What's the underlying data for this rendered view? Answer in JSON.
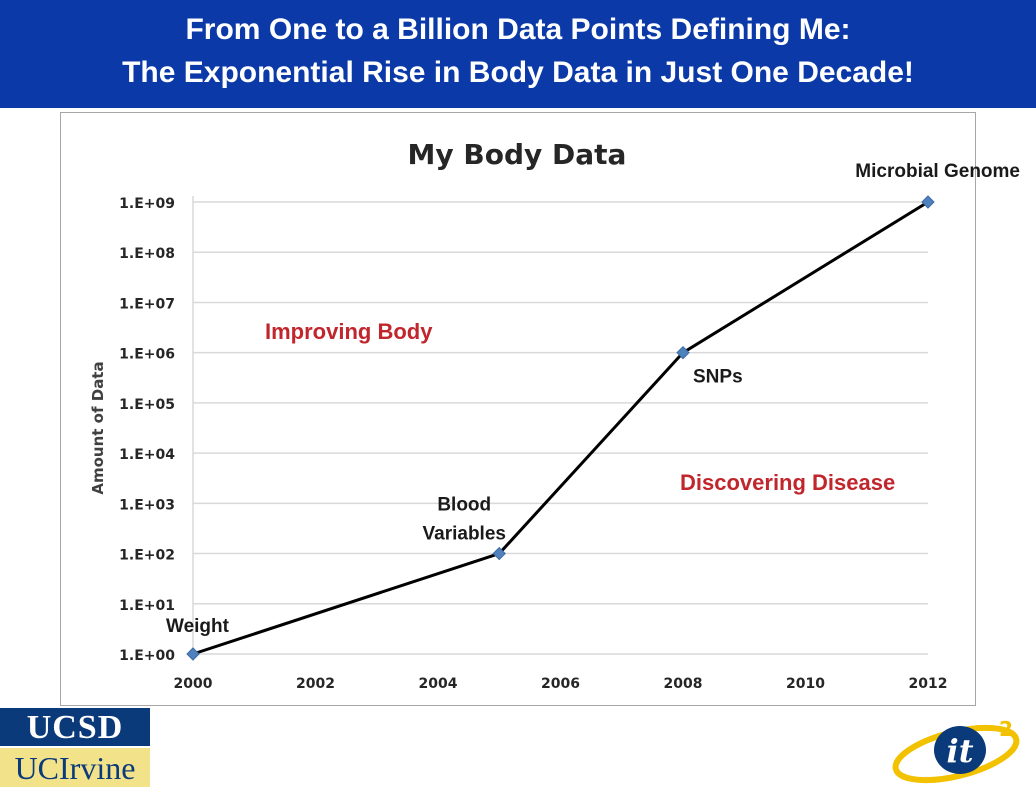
{
  "header": {
    "title_line1": "From One to a Billion Data Points Defining Me:",
    "title_line2": "The Exponential Rise in Body Data in Just One Decade!"
  },
  "logos": {
    "ucsd": "UCSD",
    "uci": "UCIrvine",
    "it2": "it",
    "it2_sup": "2"
  },
  "colors": {
    "banner": "#0b3aa8",
    "line": "#000000",
    "marker": "#4f81bd",
    "region_label": "#c0262c",
    "grid": "#d9d9d9"
  },
  "chart_data": {
    "type": "line",
    "title": "My Body Data",
    "xlabel": "",
    "ylabel": "Amount of Data",
    "yscale": "log",
    "xlim": [
      2000,
      2012
    ],
    "ylim": [
      1,
      1000000000
    ],
    "x_ticks": [
      "2000",
      "2002",
      "2004",
      "2006",
      "2008",
      "2010",
      "2012"
    ],
    "y_ticks": [
      "1.E+00",
      "1.E+01",
      "1.E+02",
      "1.E+03",
      "1.E+04",
      "1.E+05",
      "1.E+06",
      "1.E+07",
      "1.E+08",
      "1.E+09"
    ],
    "grid": true,
    "legend": "none",
    "series": [
      {
        "x": [
          2000,
          2005,
          2008,
          2012
        ],
        "y": [
          1,
          100,
          1000000,
          1000000000
        ]
      }
    ],
    "point_labels": [
      "Weight",
      "Blood Variables",
      "SNPs",
      "Microbial Genome"
    ],
    "annotations": [
      "Improving Body",
      "Discovering Disease"
    ]
  }
}
